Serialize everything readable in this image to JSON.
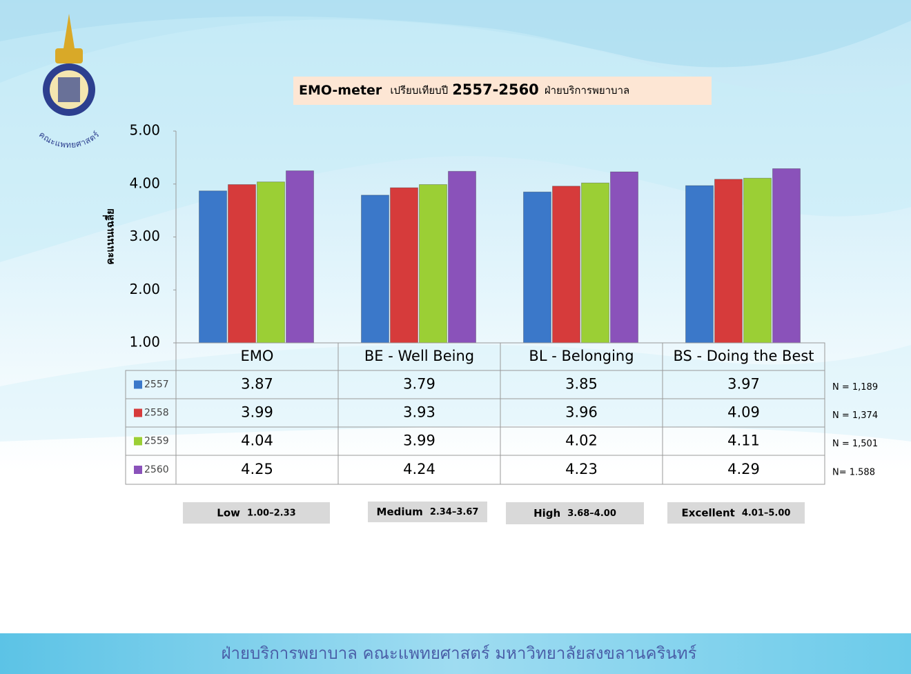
{
  "chart_data": {
    "type": "bar",
    "title": [
      "EMO-meter",
      "เปรียบเทียบปี",
      "2557-2560",
      "ฝ่ายบริการพยาบาล"
    ],
    "y_label": "คะแนนเฉลี่ย",
    "categories": [
      "EMO",
      "BE - Well Being",
      "BL - Belonging",
      "BS - Doing the Best"
    ],
    "series": [
      {
        "name": "2557",
        "color": "#3b78c9",
        "values": [
          3.87,
          3.79,
          3.85,
          3.97
        ],
        "note": "N = 1,189"
      },
      {
        "name": "2558",
        "color": "#d63b3b",
        "values": [
          3.99,
          3.93,
          3.96,
          4.09
        ],
        "note": "N = 1,374"
      },
      {
        "name": "2559",
        "color": "#9bcf35",
        "values": [
          4.04,
          3.99,
          4.02,
          4.11
        ],
        "note": "N = 1,501"
      },
      {
        "name": "2560",
        "color": "#8a52ba",
        "values": [
          4.25,
          4.24,
          4.23,
          4.29
        ],
        "note": "N= 1.588"
      }
    ],
    "ylim": [
      1,
      5
    ],
    "yticks": [
      {
        "value": 1,
        "label": "1.00"
      },
      {
        "value": 2,
        "label": "2.00"
      },
      {
        "value": 3,
        "label": "3.00"
      },
      {
        "value": 4,
        "label": "4.00"
      },
      {
        "value": 5,
        "label": "5.00"
      }
    ],
    "grid": false,
    "levels": [
      {
        "name": "Low",
        "range": "1.00–2.33"
      },
      {
        "name": "Medium",
        "range": "2.34–3.67"
      },
      {
        "name": "High",
        "range": "3.68–4.00"
      },
      {
        "name": "Excellent",
        "range": "4.01–5.00"
      }
    ]
  },
  "logo_text": "คณะแพทยศาสตร์",
  "footer": "ฝ่ายบริการพยาบาล คณะแพทยศาสตร์ มหาวิทยาลัยสงขลานครินทร์"
}
